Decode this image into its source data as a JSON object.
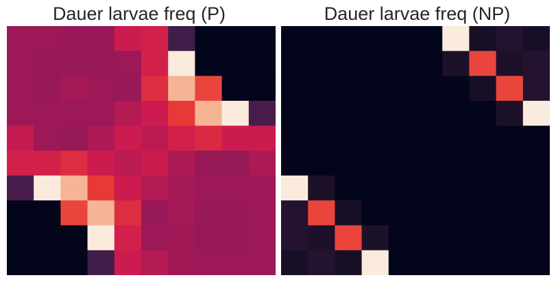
{
  "chart_data": [
    {
      "type": "heatmap",
      "title": "Dauer larvae freq (P)",
      "rows": 10,
      "cols": 10,
      "colormap": "rocket",
      "values": [
        [
          0.5,
          0.5,
          0.49,
          0.49,
          0.62,
          0.64,
          0.2,
          0.0,
          0.0,
          0.0
        ],
        [
          0.5,
          0.49,
          0.48,
          0.49,
          0.5,
          0.64,
          1.0,
          0.0,
          0.0,
          0.0
        ],
        [
          0.5,
          0.49,
          0.52,
          0.5,
          0.48,
          0.68,
          0.9,
          0.74,
          0.0,
          0.0
        ],
        [
          0.5,
          0.5,
          0.5,
          0.5,
          0.56,
          0.62,
          0.72,
          0.9,
          1.0,
          0.22
        ],
        [
          0.6,
          0.5,
          0.48,
          0.54,
          0.62,
          0.58,
          0.64,
          0.67,
          0.62,
          0.62
        ],
        [
          0.64,
          0.64,
          0.68,
          0.62,
          0.58,
          0.62,
          0.54,
          0.48,
          0.48,
          0.54
        ],
        [
          0.22,
          1.0,
          0.9,
          0.72,
          0.62,
          0.56,
          0.52,
          0.5,
          0.5,
          0.5
        ],
        [
          0.0,
          0.0,
          0.74,
          0.9,
          0.68,
          0.48,
          0.52,
          0.49,
          0.49,
          0.5
        ],
        [
          0.0,
          0.0,
          0.0,
          1.0,
          0.64,
          0.5,
          0.51,
          0.49,
          0.49,
          0.5
        ],
        [
          0.0,
          0.0,
          0.0,
          0.2,
          0.62,
          0.56,
          0.51,
          0.5,
          0.5,
          0.5
        ]
      ]
    },
    {
      "type": "heatmap",
      "title": "Dauer larvae freq (NP)",
      "rows": 10,
      "cols": 10,
      "colormap": "rocket",
      "values": [
        [
          0.0,
          0.0,
          0.0,
          0.0,
          0.0,
          0.0,
          1.0,
          0.08,
          0.12,
          0.08
        ],
        [
          0.0,
          0.0,
          0.0,
          0.0,
          0.0,
          0.0,
          0.1,
          0.74,
          0.1,
          0.12
        ],
        [
          0.0,
          0.0,
          0.0,
          0.0,
          0.0,
          0.0,
          0.0,
          0.08,
          0.74,
          0.12
        ],
        [
          0.0,
          0.0,
          0.0,
          0.0,
          0.0,
          0.0,
          0.0,
          0.0,
          0.1,
          1.0
        ],
        [
          0.0,
          0.0,
          0.0,
          0.0,
          0.0,
          0.0,
          0.0,
          0.0,
          0.0,
          0.0
        ],
        [
          0.0,
          0.0,
          0.0,
          0.0,
          0.0,
          0.0,
          0.0,
          0.0,
          0.0,
          0.0
        ],
        [
          1.0,
          0.1,
          0.0,
          0.0,
          0.0,
          0.0,
          0.0,
          0.0,
          0.0,
          0.0
        ],
        [
          0.12,
          0.74,
          0.08,
          0.0,
          0.0,
          0.0,
          0.0,
          0.0,
          0.0,
          0.0
        ],
        [
          0.12,
          0.1,
          0.74,
          0.1,
          0.0,
          0.0,
          0.0,
          0.0,
          0.0,
          0.0
        ],
        [
          0.08,
          0.12,
          0.08,
          1.0,
          0.0,
          0.0,
          0.0,
          0.0,
          0.0,
          0.0
        ]
      ]
    }
  ]
}
